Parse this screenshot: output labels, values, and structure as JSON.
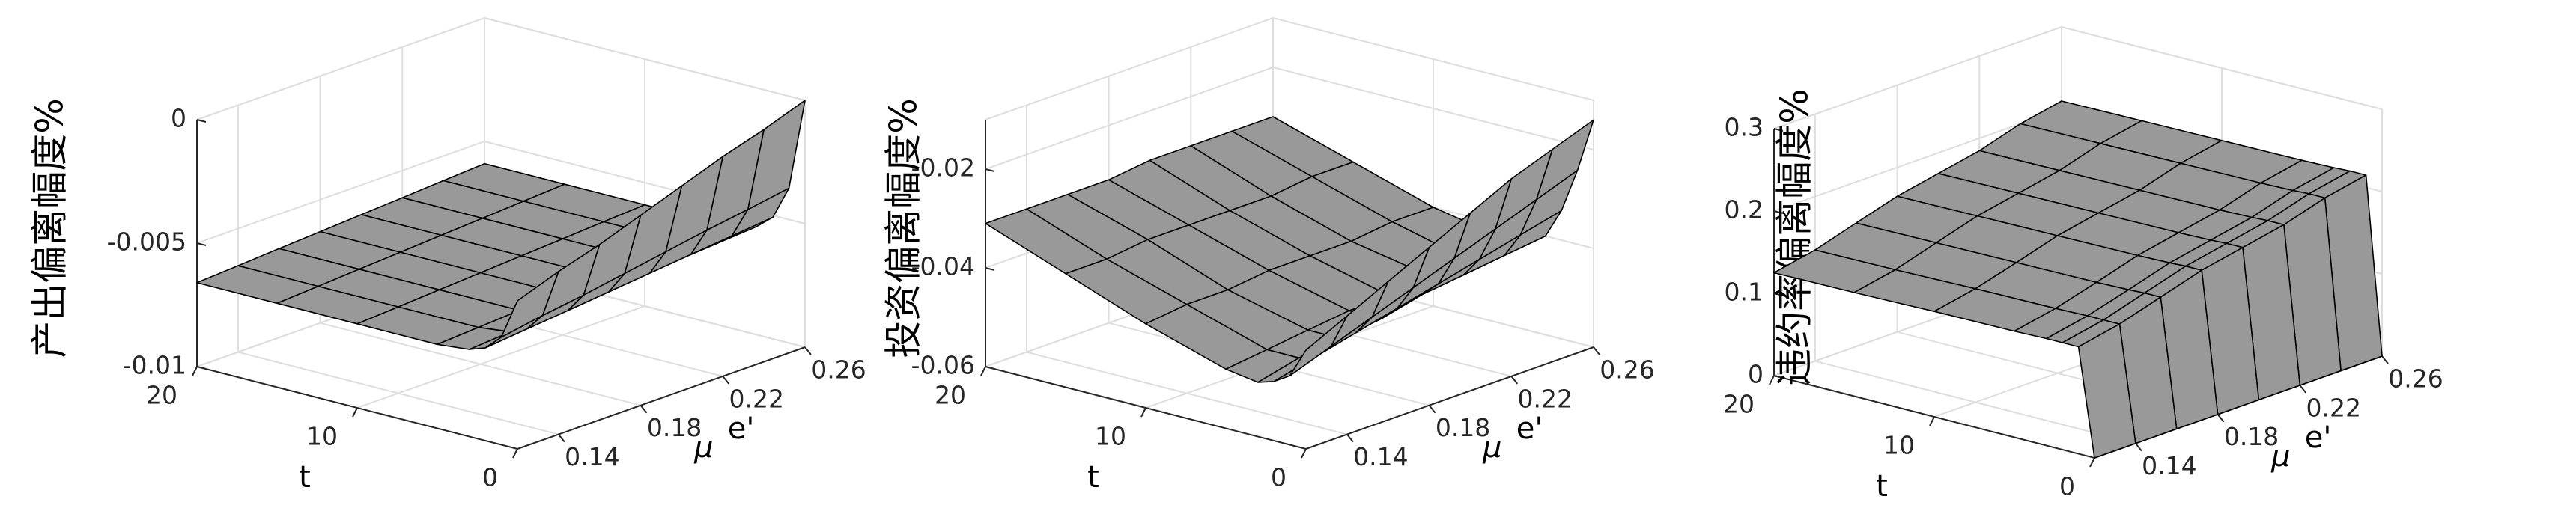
{
  "chart_data": [
    {
      "type": "surface",
      "z_label": "产出偏离幅度%",
      "x_label": "μ",
      "x_label_sup": "e'",
      "y_label": "t",
      "x": [
        0.12,
        0.14,
        0.16,
        0.18,
        0.2,
        0.22,
        0.24,
        0.26
      ],
      "y": [
        0,
        1,
        2,
        3,
        5,
        10,
        15,
        20
      ],
      "z": [
        [
          -0.004,
          -0.0034,
          -0.0029,
          -0.0023,
          -0.0017,
          -0.0011,
          -0.0006,
          0
        ],
        [
          -0.00564,
          -0.00535,
          -0.00511,
          -0.00482,
          -0.00454,
          -0.00425,
          -0.004,
          -0.00372
        ],
        [
          -0.00624,
          -0.00607,
          -0.00591,
          -0.00574,
          -0.00557,
          -0.0054,
          -0.00524,
          -0.00507
        ],
        [
          -0.00647,
          -0.00635,
          -0.00623,
          -0.0061,
          -0.00598,
          -0.00585,
          -0.00573,
          -0.00561
        ],
        [
          -0.0066,
          -0.0065,
          -0.0064,
          -0.0063,
          -0.0062,
          -0.0061,
          -0.006,
          -0.0059
        ],
        [
          -0.0066,
          -0.0065,
          -0.0064,
          -0.0063,
          -0.0062,
          -0.0061,
          -0.006,
          -0.0059
        ],
        [
          -0.0066,
          -0.0065,
          -0.0064,
          -0.0063,
          -0.0062,
          -0.0061,
          -0.006,
          -0.0059
        ],
        [
          -0.0066,
          -0.0065,
          -0.0064,
          -0.0063,
          -0.0062,
          -0.0061,
          -0.006,
          -0.0059
        ]
      ],
      "color": "#999999",
      "xlim": [
        0.12,
        0.26
      ],
      "xticks": [
        0.14,
        0.18,
        0.22,
        0.26
      ],
      "ylim": [
        0,
        20
      ],
      "yticks": [
        0,
        10,
        20
      ],
      "zlim": [
        -0.01,
        0
      ],
      "zticks": [
        -0.01,
        -0.005,
        0
      ],
      "grid": true
    },
    {
      "type": "surface",
      "z_label": "投资偏离幅度%",
      "x_label": "μ",
      "x_label_sup": "e'",
      "y_label": "t",
      "x": [
        0.12,
        0.14,
        0.16,
        0.18,
        0.2,
        0.22,
        0.24,
        0.26
      ],
      "y": [
        0,
        1,
        2,
        3,
        5,
        10,
        15,
        20
      ],
      "z": [
        [
          -0.04,
          -0.036,
          -0.032,
          -0.028,
          -0.024,
          -0.02,
          -0.017,
          -0.014
        ],
        [
          -0.046,
          -0.043,
          -0.04,
          -0.037,
          -0.034,
          -0.031,
          -0.028,
          -0.025
        ],
        [
          -0.048,
          -0.046,
          -0.044,
          -0.042,
          -0.04,
          -0.038,
          -0.036,
          -0.034
        ],
        [
          -0.049,
          -0.047,
          -0.046,
          -0.045,
          -0.043,
          -0.042,
          -0.041,
          -0.04
        ],
        [
          -0.048,
          -0.047,
          -0.046,
          -0.045,
          -0.045,
          -0.044,
          -0.044,
          -0.043
        ],
        [
          -0.043,
          -0.042,
          -0.042,
          -0.041,
          -0.041,
          -0.041,
          -0.04,
          -0.04
        ],
        [
          -0.037,
          -0.037,
          -0.036,
          -0.036,
          -0.036,
          -0.036,
          -0.035,
          -0.035
        ],
        [
          -0.031,
          -0.031,
          -0.031,
          -0.031,
          -0.03,
          -0.03,
          -0.03,
          -0.03
        ]
      ],
      "color": "#999999",
      "xlim": [
        0.12,
        0.26
      ],
      "xticks": [
        0.14,
        0.18,
        0.22,
        0.26
      ],
      "ylim": [
        0,
        20
      ],
      "yticks": [
        0,
        10,
        20
      ],
      "zlim": [
        -0.06,
        -0.01
      ],
      "zticks": [
        -0.06,
        -0.04,
        -0.02
      ],
      "grid": true
    },
    {
      "type": "surface",
      "z_label": "违约率偏离幅度%",
      "x_label": "μ",
      "x_label_sup": "e'",
      "y_label": "t",
      "x": [
        0.12,
        0.14,
        0.16,
        0.18,
        0.2,
        0.22,
        0.24,
        0.26
      ],
      "y": [
        0,
        1,
        2,
        3,
        5,
        10,
        15,
        20
      ],
      "z": [
        [
          0,
          0,
          0,
          0,
          0,
          0,
          0,
          0
        ],
        [
          0.13,
          0.14,
          0.155,
          0.17,
          0.18,
          0.19,
          0.205,
          0.215
        ],
        [
          0.13,
          0.14,
          0.155,
          0.17,
          0.18,
          0.19,
          0.205,
          0.215
        ],
        [
          0.13,
          0.14,
          0.154,
          0.169,
          0.179,
          0.189,
          0.204,
          0.214
        ],
        [
          0.129,
          0.139,
          0.153,
          0.168,
          0.178,
          0.188,
          0.203,
          0.213
        ],
        [
          0.128,
          0.138,
          0.152,
          0.167,
          0.177,
          0.187,
          0.202,
          0.212
        ],
        [
          0.126,
          0.136,
          0.151,
          0.166,
          0.176,
          0.186,
          0.201,
          0.211
        ],
        [
          0.125,
          0.135,
          0.15,
          0.165,
          0.175,
          0.185,
          0.2,
          0.21
        ]
      ],
      "color": "#999999",
      "xlim": [
        0.12,
        0.26
      ],
      "xticks": [
        0.14,
        0.18,
        0.22,
        0.26
      ],
      "ylim": [
        0,
        20
      ],
      "yticks": [
        0,
        10,
        20
      ],
      "zlim": [
        0,
        0.3
      ],
      "zticks": [
        0,
        0.1,
        0.2,
        0.3
      ],
      "grid": true
    }
  ]
}
